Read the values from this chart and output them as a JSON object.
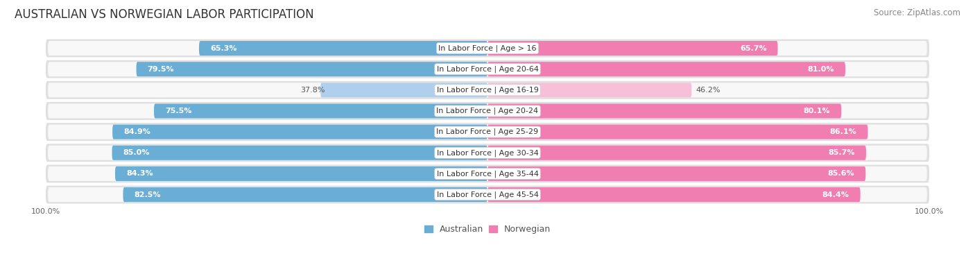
{
  "title": "AUSTRALIAN VS NORWEGIAN LABOR PARTICIPATION",
  "source": "Source: ZipAtlas.com",
  "categories": [
    "In Labor Force | Age > 16",
    "In Labor Force | Age 20-64",
    "In Labor Force | Age 16-19",
    "In Labor Force | Age 20-24",
    "In Labor Force | Age 25-29",
    "In Labor Force | Age 30-34",
    "In Labor Force | Age 35-44",
    "In Labor Force | Age 45-54"
  ],
  "australian": [
    65.3,
    79.5,
    37.8,
    75.5,
    84.9,
    85.0,
    84.3,
    82.5
  ],
  "norwegian": [
    65.7,
    81.0,
    46.2,
    80.1,
    86.1,
    85.7,
    85.6,
    84.4
  ],
  "aus_color": "#6aaed6",
  "aus_color_light": "#aed0ec",
  "nor_color": "#f07eb0",
  "nor_color_light": "#f8c0d8",
  "row_bg": "#e8e8e8",
  "row_bg_inner": "#f0f0f0",
  "title_fontsize": 12,
  "source_fontsize": 8.5,
  "label_fontsize": 8,
  "value_fontsize": 8,
  "legend_fontsize": 9,
  "axis_label_fontsize": 8,
  "background_color": "#ffffff"
}
